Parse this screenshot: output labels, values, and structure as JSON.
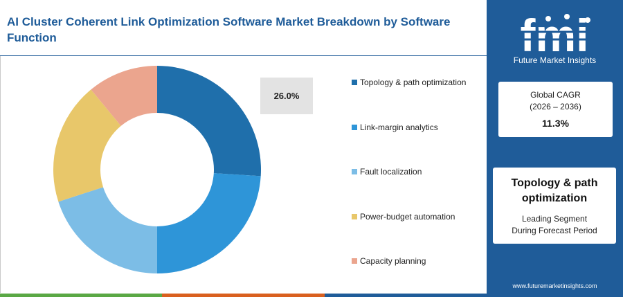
{
  "title": "AI Cluster Coherent Link Optimization Software Market Breakdown by Software Function",
  "chart_data": {
    "type": "pie",
    "donut": true,
    "title": "AI Cluster Coherent Link Optimization Software Market Breakdown by Software Function",
    "categories": [
      "Topology & path optimization",
      "Link-margin analytics",
      "Fault localization",
      "Power-budget automation",
      "Capacity planning"
    ],
    "values": [
      26.0,
      24.0,
      20.0,
      19.0,
      11.0
    ],
    "colors": [
      "#1f6fab",
      "#2e95d8",
      "#7cbde6",
      "#e8c76a",
      "#eba58e"
    ],
    "callout_label": "26.0%",
    "legend_position": "right"
  },
  "bottom_bar_colors": [
    "#5aa845",
    "#d9601f",
    "#1f5c99"
  ],
  "sidebar": {
    "logo_text": "fmi",
    "logo_tagline": "Future Market Insights",
    "cagr_title": "Global CAGR",
    "cagr_period": "(2026 – 2036)",
    "cagr_value": "11.3%",
    "leading_segment": "Topology & path optimization",
    "leading_desc_line1": "Leading Segment",
    "leading_desc_line2": "During Forecast Period",
    "website": "www.futuremarketinsights.com"
  }
}
